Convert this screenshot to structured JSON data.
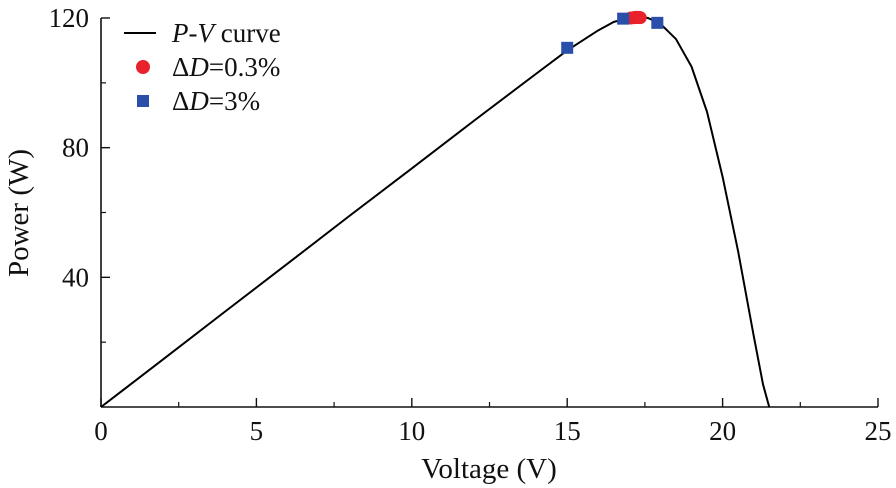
{
  "chart_data": {
    "type": "line",
    "xlabel": "Voltage (V)",
    "ylabel": "Power (W)",
    "xlim": [
      0,
      25
    ],
    "ylim": [
      0,
      120
    ],
    "x_ticks": [
      0,
      5,
      10,
      15,
      20,
      25
    ],
    "x_tick_labels": [
      "0",
      "5",
      "10",
      "15",
      "20",
      "25"
    ],
    "y_ticks": [
      40,
      80,
      120
    ],
    "y_tick_labels": [
      "40",
      "80",
      "120"
    ],
    "grid": false,
    "legend_position": "top-left",
    "series": [
      {
        "name": "P-V curve",
        "type": "line",
        "color": "#000000",
        "x": [
          0,
          2,
          4,
          6,
          8,
          10,
          12,
          14,
          15,
          16,
          16.5,
          17,
          17.3,
          17.6,
          18,
          18.5,
          19,
          19.5,
          20,
          20.5,
          21,
          21.3,
          21.5
        ],
        "y": [
          0,
          14.7,
          29.5,
          44.2,
          59.0,
          73.6,
          88.3,
          102.8,
          110.0,
          116.2,
          118.8,
          120.0,
          120.3,
          120.0,
          118.2,
          113.5,
          105.0,
          91.0,
          71.0,
          48.0,
          22.0,
          7.0,
          0
        ]
      },
      {
        "name": "ΔD=0.3%",
        "type": "scatter",
        "marker": "circle",
        "color": "#e8212a",
        "x": [
          17.05,
          17.15,
          17.2,
          17.25,
          17.3,
          17.35
        ],
        "y": [
          120.0,
          120.1,
          120.2,
          120.2,
          120.2,
          120.1
        ]
      },
      {
        "name": "ΔD=3%",
        "type": "scatter",
        "marker": "square",
        "color": "#2a4faa",
        "x": [
          15.0,
          16.8,
          17.9
        ],
        "y": [
          110.8,
          119.8,
          118.5
        ]
      }
    ],
    "legend": [
      {
        "prefix": "",
        "italic": "P",
        "middle": "-",
        "italic2": "V",
        "suffix": " curve"
      },
      {
        "prefix": "Δ",
        "italic": "D",
        "middle": "=0.3%",
        "italic2": "",
        "suffix": ""
      },
      {
        "prefix": "Δ",
        "italic": "D",
        "middle": "=3%",
        "italic2": "",
        "suffix": ""
      }
    ]
  }
}
